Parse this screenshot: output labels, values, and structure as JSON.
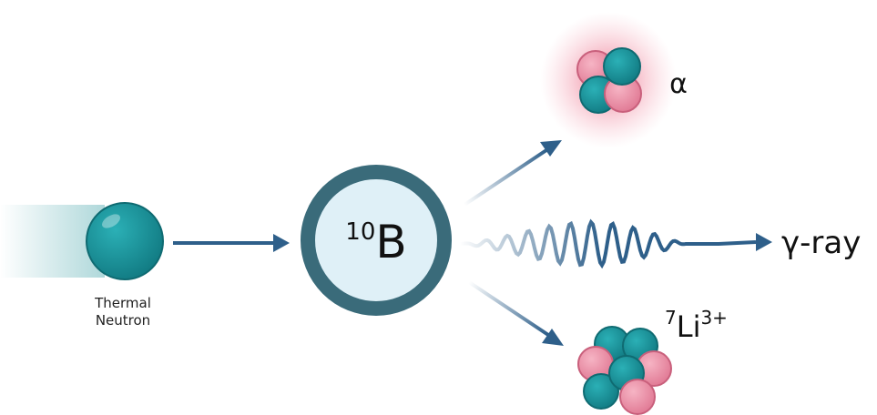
{
  "neutron": {
    "label_lines": [
      "Thermal",
      "Neutron"
    ]
  },
  "target": {
    "mass_number": "10",
    "symbol": "B"
  },
  "products": {
    "alpha": "α",
    "gamma": "γ-ray",
    "lithium": {
      "mass_number": "7",
      "symbol": "Li",
      "charge": "3+"
    }
  }
}
